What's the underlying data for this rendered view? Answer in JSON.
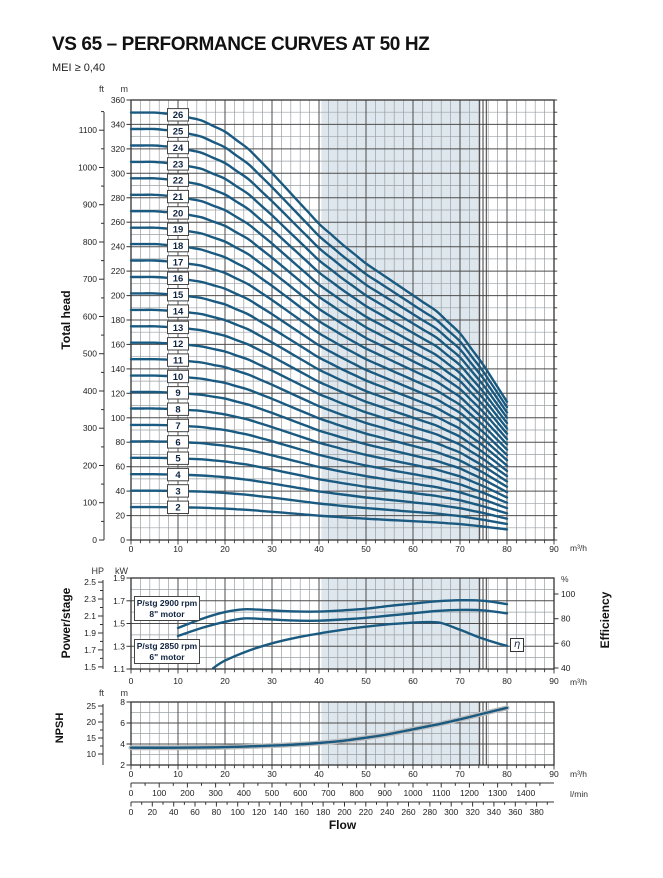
{
  "header": {
    "title": "VS 65 – PERFORMANCE CURVES AT 50 HZ",
    "mei": "MEI ≥ 0,40"
  },
  "units": {
    "m3h": "m³/h",
    "lmin": "l/min",
    "ft": "ft",
    "m": "m",
    "hp": "HP",
    "kw": "kW",
    "percent": "%"
  },
  "axis_titles": {
    "head": "Total head",
    "power": "Power/stage",
    "npsh": "NPSH",
    "efficiency": "Efficiency",
    "flow": "Flow"
  },
  "labels": {
    "motor_2900": [
      "P/stg 2900 rpm",
      "8\" motor"
    ],
    "motor_2850": [
      "P/stg 2850 rpm",
      "6\" motor"
    ],
    "eta": "η"
  },
  "chart_data": [
    {
      "id": "total_head",
      "type": "line",
      "title": "Total head",
      "xlabel": "Flow",
      "x_unit": "m³/h",
      "x_range": [
        0,
        90
      ],
      "x_major": 10,
      "x_minor": 2,
      "y_unit": "m",
      "y_range": [
        0,
        360
      ],
      "y_major": 20,
      "y_minor": 10,
      "y2_unit": "ft",
      "y2_major": 100,
      "y2_minor": 50,
      "y2_max": 1150,
      "operating_band_x": [
        40.5,
        74.2
      ],
      "duty_lines_x": [
        74.2,
        74.9,
        75.6
      ],
      "stages": [
        2,
        3,
        4,
        5,
        6,
        7,
        8,
        9,
        10,
        11,
        12,
        13,
        14,
        15,
        16,
        17,
        18,
        19,
        20,
        21,
        22,
        23,
        24,
        25,
        26
      ],
      "stage_label_x": 10,
      "per_stage_head": {
        "x": [
          0,
          5,
          10,
          15,
          20,
          25,
          30,
          35,
          40,
          45,
          50,
          55,
          60,
          65,
          70,
          75,
          80
        ],
        "head_m": [
          13.45,
          13.45,
          13.38,
          13.2,
          12.85,
          12.3,
          11.55,
          10.75,
          9.95,
          9.3,
          8.7,
          8.2,
          7.7,
          7.2,
          6.5,
          5.5,
          4.35
        ]
      }
    },
    {
      "id": "power_efficiency",
      "type": "line",
      "title": "Power/stage",
      "x_unit": "m³/h",
      "x_range": [
        0,
        90
      ],
      "x_major": 10,
      "x_minor": 2,
      "y_unit": "kW",
      "y_range": [
        1.1,
        1.9
      ],
      "y_major": 0.2,
      "y_minor": 0.1,
      "y2_unit": "HP",
      "y2_ticks": [
        1.5,
        1.7,
        1.9,
        2.1,
        2.3,
        2.5
      ],
      "y3_unit": "%",
      "y3_range": [
        40,
        100
      ],
      "y3_major": 20,
      "operating_band_x": [
        40.5,
        74.2
      ],
      "duty_lines_x": [
        74.2,
        74.9,
        75.6
      ],
      "series": [
        {
          "name": "P/stg 2900 rpm 8\" motor",
          "unit": "kW",
          "x": [
            10,
            15,
            20,
            24,
            28,
            32,
            36,
            40,
            45,
            50,
            55,
            60,
            65,
            70,
            75,
            80
          ],
          "y": [
            1.46,
            1.54,
            1.6,
            1.625,
            1.62,
            1.61,
            1.605,
            1.605,
            1.615,
            1.63,
            1.655,
            1.675,
            1.695,
            1.705,
            1.7,
            1.67
          ]
        },
        {
          "name": "P/stg 2850 rpm 6\" motor",
          "unit": "kW",
          "x": [
            10,
            15,
            20,
            24,
            28,
            32,
            36,
            40,
            45,
            50,
            55,
            60,
            65,
            70,
            75,
            80
          ],
          "y": [
            1.39,
            1.46,
            1.515,
            1.545,
            1.54,
            1.53,
            1.525,
            1.525,
            1.535,
            1.55,
            1.57,
            1.59,
            1.61,
            1.62,
            1.615,
            1.59
          ]
        },
        {
          "name": "η efficiency",
          "unit": "%",
          "x": [
            17.5,
            20,
            25,
            30,
            35,
            40,
            45,
            50,
            55,
            60,
            63,
            66,
            70,
            74,
            78,
            80
          ],
          "y": [
            40,
            46,
            54,
            60,
            64.5,
            68,
            71,
            73.5,
            75.5,
            76.8,
            77.2,
            76.5,
            71,
            65,
            60,
            58
          ]
        }
      ]
    },
    {
      "id": "npsh",
      "type": "line",
      "title": "NPSH",
      "x_unit": "m³/h",
      "x_range": [
        0,
        90
      ],
      "x_major": 10,
      "x_minor": 2,
      "y_unit": "m",
      "y_range": [
        2,
        8
      ],
      "y_major": 2,
      "y_minor": 1,
      "y2_unit": "ft",
      "y2_ticks": [
        10,
        15,
        20,
        25
      ],
      "operating_band_x": [
        40.5,
        74.2
      ],
      "duty_lines_x": [
        74.2,
        74.9,
        75.6
      ],
      "series": [
        {
          "name": "NPSH",
          "unit": "m",
          "x": [
            0,
            10,
            20,
            30,
            35,
            40,
            45,
            50,
            55,
            60,
            65,
            70,
            75,
            80
          ],
          "y": [
            3.65,
            3.65,
            3.7,
            3.85,
            3.95,
            4.1,
            4.3,
            4.6,
            4.95,
            5.4,
            5.85,
            6.35,
            6.9,
            7.45
          ]
        }
      ]
    }
  ],
  "flow_scales": {
    "m3h": {
      "unit": "m³/h",
      "tick_step": 10,
      "tick_max": 90
    },
    "lmin": {
      "unit": "l/min",
      "axis_max_equiv": 1500,
      "tick_step": 100,
      "minor_step": 50,
      "tick_max": 1400
    },
    "gpm": {
      "unit": "",
      "axis_max_equiv": 396.26,
      "tick_step": 20,
      "minor_step": 10,
      "tick_max": 380
    }
  },
  "colors": {
    "curve": "#1a5a80",
    "band": "#dee7ed",
    "grid_major": "#4d4d4d",
    "grid_minor": "#9aa0a4",
    "frame": "#333333",
    "halo": "#bcbcbc"
  }
}
